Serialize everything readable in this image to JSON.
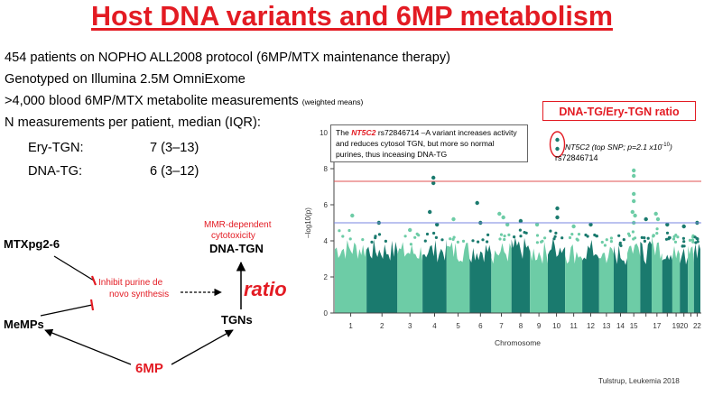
{
  "title": "Host DNA variants and 6MP metabolism",
  "bullets": {
    "line1": "454 patients on NOPHO ALL2008 protocol (6MP/MTX maintenance therapy)",
    "line2": "Genotyped on Illumina 2.5M OmniExome",
    "line3_main": ">4,000 blood 6MP/MTX metabolite measurements",
    "line3_note": "(weighted means)",
    "line4": "N measurements per patient, median (IQR):"
  },
  "measurements": [
    {
      "label": "Ery-TGN:",
      "value": "7 (3–13)"
    },
    {
      "label": "DNA-TG:",
      "value": "6 (3–12)"
    }
  ],
  "pathway": {
    "mtx": "MTXpg2-6",
    "memps": "MeMPs",
    "inhibit_line1": "Inhibit purine de",
    "inhibit_line2": "novo synthesis",
    "mmr_line1": "MMR-dependent",
    "mmr_line2": "cytotoxicity",
    "dna_tgn": "DNA-TGN",
    "ratio": "ratio",
    "tgns": "TGNs",
    "sixmp": "6MP"
  },
  "ratio_label": "DNA-TG/Ery-TGN ratio",
  "note": {
    "pre": "The ",
    "gene": "NT5C2",
    "post": " rs72846714 –A variant increases activity and reduces cytosol TGN, but more so normal purines, thus inceasing DNA-TG"
  },
  "snp_note": {
    "gene": "NT5C2",
    "detail": "(top SNP; p=2.1 x10",
    "exp": "-10",
    "close": ")",
    "id": "rs72846714"
  },
  "citation": "Tulstrup, Leukemia 2018",
  "colors": {
    "accent_red": "#e31b23",
    "light_green": "#6dcca6",
    "dark_teal": "#1a7a6e",
    "sig_line_red": "#e05050",
    "sug_line_blue": "#7a86e0"
  },
  "chart_data": {
    "type": "scatter",
    "subtype": "manhattan",
    "xlabel": "Chromosome",
    "ylabel": "–log10(p)",
    "ylim": [
      0,
      10
    ],
    "yticks": [
      0,
      2,
      4,
      6,
      8,
      10
    ],
    "chromosomes": [
      "1",
      "2",
      "3",
      "4",
      "5",
      "6",
      "7",
      "8",
      "9",
      "10",
      "11",
      "12",
      "13",
      "14",
      "15",
      "16",
      "17",
      "18",
      "19",
      "20",
      "21",
      "22"
    ],
    "chromosome_labels": [
      "1",
      "2",
      "3",
      "4",
      "5",
      "6",
      "7",
      "8",
      "9",
      "10",
      "11",
      "12",
      "13",
      "14",
      "15",
      "",
      "17",
      "",
      "19",
      "20",
      "",
      "22"
    ],
    "chromosome_weights": [
      250,
      243,
      198,
      190,
      181,
      171,
      159,
      146,
      141,
      136,
      135,
      133,
      115,
      107,
      102,
      90,
      83,
      80,
      59,
      64,
      47,
      51
    ],
    "baseline_peak": [
      4.2,
      4.1,
      4.0,
      4.1,
      4.1,
      4.1,
      4.0,
      4.2,
      4.0,
      4.3,
      4.0,
      4.1,
      3.9,
      3.9,
      4.3,
      4.0,
      4.3,
      4.1,
      4.0,
      3.9,
      4.0,
      4.1
    ],
    "significance_line": 7.3,
    "suggestive_line": 5.0,
    "highlights": [
      {
        "chr": "4",
        "pos": 0.45,
        "p": 7.5
      },
      {
        "chr": "4",
        "pos": 0.45,
        "p": 7.2
      },
      {
        "chr": "4",
        "pos": 0.3,
        "p": 5.6
      },
      {
        "chr": "4",
        "pos": 0.6,
        "p": 4.9
      },
      {
        "chr": "6",
        "pos": 0.35,
        "p": 6.1
      },
      {
        "chr": "6",
        "pos": 0.5,
        "p": 5.0
      },
      {
        "chr": "7",
        "pos": 0.4,
        "p": 5.5
      },
      {
        "chr": "7",
        "pos": 0.6,
        "p": 5.3
      },
      {
        "chr": "7",
        "pos": 0.8,
        "p": 4.9
      },
      {
        "chr": "1",
        "pos": 0.55,
        "p": 5.4
      },
      {
        "chr": "2",
        "pos": 0.4,
        "p": 5.0
      },
      {
        "chr": "3",
        "pos": 0.5,
        "p": 4.6
      },
      {
        "chr": "5",
        "pos": 0.3,
        "p": 5.2
      },
      {
        "chr": "8",
        "pos": 0.5,
        "p": 5.1
      },
      {
        "chr": "9",
        "pos": 0.4,
        "p": 4.9
      },
      {
        "chr": "10",
        "pos": 0.55,
        "p": 9.6
      },
      {
        "chr": "10",
        "pos": 0.55,
        "p": 9.1
      },
      {
        "chr": "10",
        "pos": 0.55,
        "p": 5.8
      },
      {
        "chr": "10",
        "pos": 0.55,
        "p": 5.3
      },
      {
        "chr": "11",
        "pos": 0.5,
        "p": 4.8
      },
      {
        "chr": "12",
        "pos": 0.5,
        "p": 4.9
      },
      {
        "chr": "15",
        "pos": 0.5,
        "p": 7.9
      },
      {
        "chr": "15",
        "pos": 0.5,
        "p": 7.6
      },
      {
        "chr": "15",
        "pos": 0.5,
        "p": 6.6
      },
      {
        "chr": "15",
        "pos": 0.5,
        "p": 6.2
      },
      {
        "chr": "15",
        "pos": 0.4,
        "p": 5.6
      },
      {
        "chr": "15",
        "pos": 0.6,
        "p": 5.4
      },
      {
        "chr": "15",
        "pos": 0.5,
        "p": 5.0
      },
      {
        "chr": "16",
        "pos": 0.5,
        "p": 5.2
      },
      {
        "chr": "17",
        "pos": 0.4,
        "p": 5.5
      },
      {
        "chr": "17",
        "pos": 0.6,
        "p": 5.2
      },
      {
        "chr": "18",
        "pos": 0.5,
        "p": 4.9
      },
      {
        "chr": "20",
        "pos": 0.5,
        "p": 4.8
      },
      {
        "chr": "22",
        "pos": 0.5,
        "p": 5.0
      }
    ]
  }
}
